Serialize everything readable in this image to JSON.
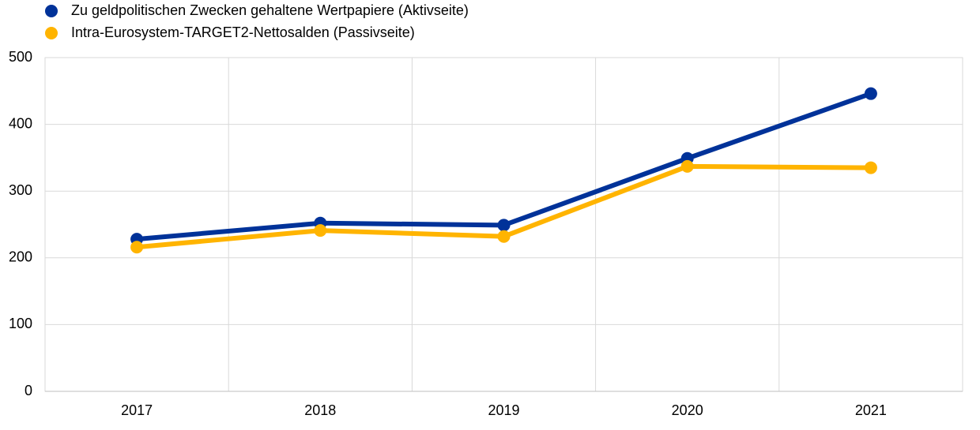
{
  "chart_data": {
    "type": "line",
    "categories": [
      "2017",
      "2018",
      "2019",
      "2020",
      "2021"
    ],
    "series": [
      {
        "name": "Zu geldpolitischen Zwecken gehaltene Wertpapiere (Aktivseite)",
        "color": "#003299",
        "values": [
          228,
          252,
          249,
          349,
          446
        ]
      },
      {
        "name": "Intra-Eurosystem-TARGET2-Nettosalden (Passivseite)",
        "color": "#ffb400",
        "values": [
          216,
          241,
          232,
          337,
          335
        ]
      }
    ],
    "ylim": [
      0,
      500
    ],
    "yticks": [
      0,
      100,
      200,
      300,
      400,
      500
    ],
    "grid": true,
    "legend": "top-left"
  }
}
